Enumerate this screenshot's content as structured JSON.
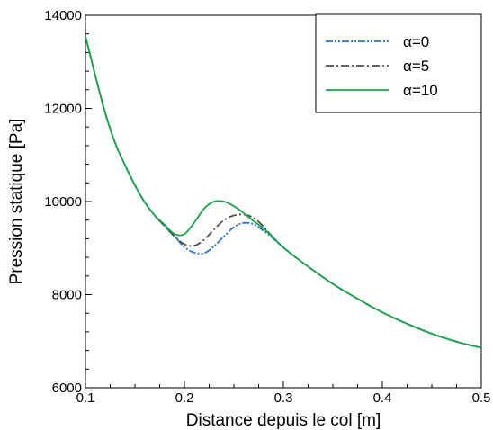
{
  "chart_data": {
    "type": "line",
    "xlabel": "Distance depuis le col [m]",
    "ylabel": "Pression statique [Pa]",
    "xlim": [
      0.1,
      0.5
    ],
    "ylim": [
      6000,
      14000
    ],
    "x_ticks": [
      0.1,
      0.2,
      0.3,
      0.4,
      0.5
    ],
    "x_tick_labels": [
      "0.1",
      "0.2",
      "0.3",
      "0.4",
      "0.5"
    ],
    "y_ticks": [
      6000,
      8000,
      10000,
      12000,
      14000
    ],
    "y_tick_labels": [
      "6000",
      "8000",
      "10000",
      "12000",
      "14000"
    ],
    "grid": false,
    "legend": {
      "position": "top-right"
    },
    "series": [
      {
        "name": "α=0",
        "color": "#1f77d4",
        "dash": "dash-dot-dot",
        "x": [
          0.1,
          0.11,
          0.12,
          0.13,
          0.14,
          0.15,
          0.16,
          0.17,
          0.18,
          0.19,
          0.2,
          0.21,
          0.22,
          0.23,
          0.24,
          0.25,
          0.26,
          0.27,
          0.28,
          0.29,
          0.3,
          0.32,
          0.35,
          0.38,
          0.4,
          0.42,
          0.45,
          0.48,
          0.5
        ],
        "y": [
          13550,
          12700,
          11900,
          11260,
          10780,
          10350,
          9980,
          9700,
          9470,
          9250,
          9020,
          8900,
          8890,
          9040,
          9250,
          9450,
          9540,
          9510,
          9370,
          9200,
          9010,
          8680,
          8230,
          7850,
          7620,
          7420,
          7160,
          6960,
          6860
        ]
      },
      {
        "name": "α=5",
        "color": "#4d4d4d",
        "dash": "dash-dot",
        "x": [
          0.1,
          0.11,
          0.12,
          0.13,
          0.14,
          0.15,
          0.16,
          0.17,
          0.18,
          0.19,
          0.2,
          0.21,
          0.22,
          0.23,
          0.24,
          0.25,
          0.26,
          0.27,
          0.28,
          0.29,
          0.3,
          0.32,
          0.35,
          0.38,
          0.4,
          0.42,
          0.45,
          0.48,
          0.5
        ],
        "y": [
          13550,
          12700,
          11900,
          11260,
          10780,
          10350,
          9980,
          9700,
          9470,
          9250,
          9080,
          9050,
          9180,
          9400,
          9600,
          9700,
          9720,
          9650,
          9460,
          9220,
          9010,
          8680,
          8230,
          7850,
          7620,
          7420,
          7160,
          6960,
          6860
        ]
      },
      {
        "name": "α=10",
        "color": "#1aa54a",
        "dash": "solid",
        "x": [
          0.1,
          0.11,
          0.12,
          0.13,
          0.14,
          0.15,
          0.16,
          0.17,
          0.18,
          0.19,
          0.2,
          0.21,
          0.22,
          0.23,
          0.24,
          0.25,
          0.26,
          0.27,
          0.28,
          0.29,
          0.3,
          0.32,
          0.35,
          0.38,
          0.4,
          0.42,
          0.45,
          0.48,
          0.5
        ],
        "y": [
          13550,
          12700,
          11900,
          11260,
          10780,
          10350,
          9980,
          9700,
          9500,
          9300,
          9300,
          9550,
          9850,
          10000,
          10000,
          9900,
          9750,
          9580,
          9420,
          9220,
          9010,
          8680,
          8230,
          7850,
          7620,
          7420,
          7160,
          6960,
          6860
        ]
      }
    ]
  }
}
